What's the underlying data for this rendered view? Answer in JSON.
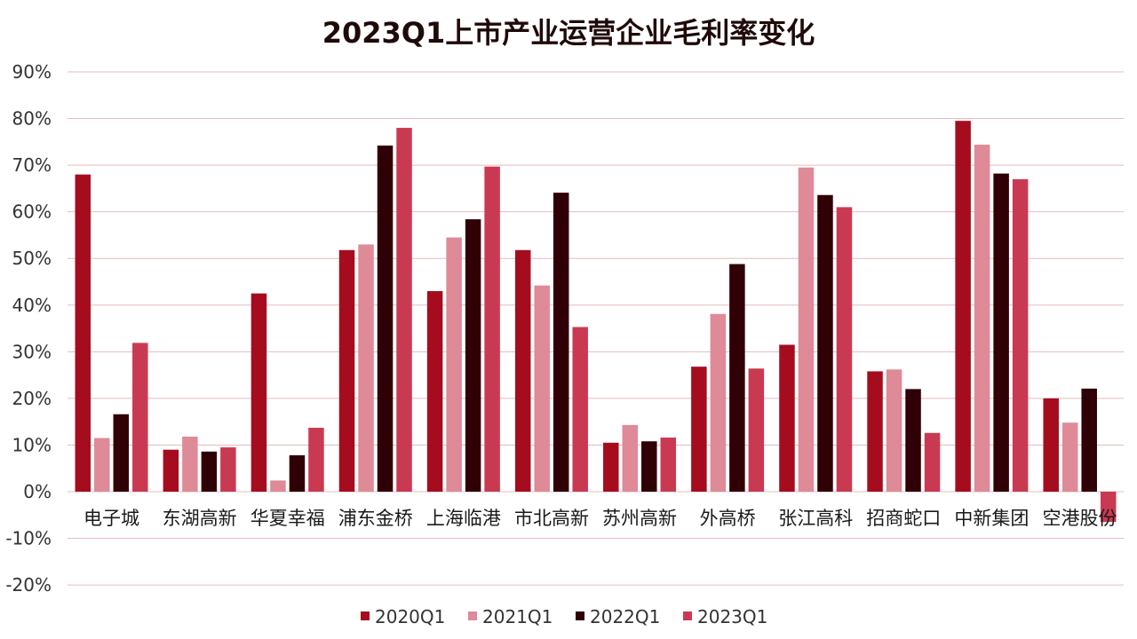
{
  "chart_data": {
    "type": "bar",
    "title": "2023Q1上市产业运营企业毛利率变化",
    "xlabel": "",
    "ylabel": "",
    "ylim": [
      -0.2,
      0.9
    ],
    "yticks": [
      -0.2,
      -0.1,
      0,
      0.1,
      0.2,
      0.3,
      0.4,
      0.5,
      0.6,
      0.7,
      0.8,
      0.9
    ],
    "ytick_labels": [
      "-20%",
      "-10%",
      "0%",
      "10%",
      "20%",
      "30%",
      "40%",
      "50%",
      "60%",
      "70%",
      "80%",
      "90%"
    ],
    "grid": true,
    "legend_position": "bottom",
    "categories": [
      "电子城",
      "东湖高新",
      "华夏幸福",
      "浦东金桥",
      "上海临港",
      "市北高新",
      "苏州高新",
      "外高桥",
      "张江高科",
      "招商蛇口",
      "中新集团",
      "空港股份"
    ],
    "series": [
      {
        "name": "2020Q1",
        "color": "#a50d1f",
        "values": [
          0.68,
          0.09,
          0.425,
          0.518,
          0.43,
          0.518,
          0.105,
          0.268,
          0.315,
          0.258,
          0.795,
          0.2
        ]
      },
      {
        "name": "2021Q1",
        "color": "#de8a97",
        "values": [
          0.115,
          0.118,
          0.024,
          0.53,
          0.545,
          0.442,
          0.143,
          0.381,
          0.695,
          0.262,
          0.744,
          0.148
        ]
      },
      {
        "name": "2022Q1",
        "color": "#2f0005",
        "values": [
          0.166,
          0.086,
          0.078,
          0.742,
          0.584,
          0.641,
          0.108,
          0.488,
          0.636,
          0.22,
          0.682,
          0.221
        ]
      },
      {
        "name": "2023Q1",
        "color": "#c93a52",
        "values": [
          0.319,
          0.095,
          0.137,
          0.78,
          0.697,
          0.353,
          0.116,
          0.264,
          0.61,
          0.126,
          0.67,
          -0.065
        ]
      }
    ]
  }
}
